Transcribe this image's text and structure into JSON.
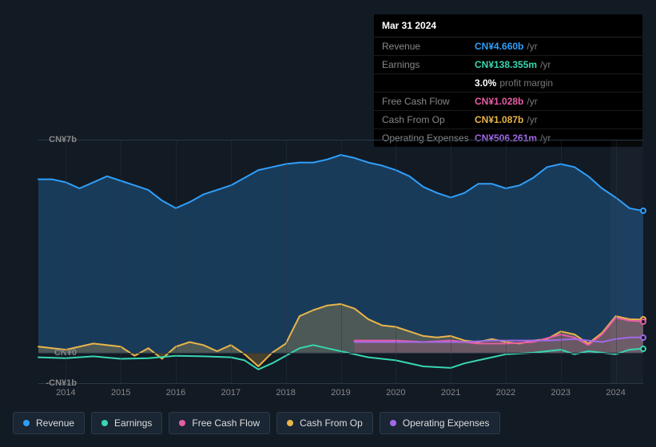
{
  "tooltip": {
    "date": "Mar 31 2024",
    "rows": [
      {
        "label": "Revenue",
        "value": "CN¥4.660b",
        "suffix": "/yr",
        "color": "#2f9ffa"
      },
      {
        "label": "Earnings",
        "value": "CN¥138.355m",
        "suffix": "/yr",
        "color": "#38d6b1"
      },
      {
        "label": "",
        "value": "3.0%",
        "suffix": "profit margin",
        "color": "#ffffff"
      },
      {
        "label": "Free Cash Flow",
        "value": "CN¥1.028b",
        "suffix": "/yr",
        "color": "#e85ca6"
      },
      {
        "label": "Cash From Op",
        "value": "CN¥1.087b",
        "suffix": "/yr",
        "color": "#e8b54a"
      },
      {
        "label": "Operating Expenses",
        "value": "CN¥506.261m",
        "suffix": "/yr",
        "color": "#a269e8"
      }
    ]
  },
  "chart": {
    "type": "line-area",
    "background_color": "#121a24",
    "grid_color": "#2a3846",
    "text_color": "#888",
    "y_axis": {
      "min": -1,
      "max": 7,
      "ticks": [
        {
          "value": 7,
          "label": "CN¥7b"
        },
        {
          "value": 0,
          "label": "CN¥0"
        },
        {
          "value": -1,
          "label": "-CN¥1b"
        }
      ]
    },
    "x_axis": {
      "min": 2013.5,
      "max": 2024.5,
      "ticks": [
        2014,
        2015,
        2016,
        2017,
        2018,
        2019,
        2020,
        2021,
        2022,
        2023,
        2024
      ]
    },
    "highlight_band": {
      "from": 2023.9,
      "to": 2024.5
    },
    "series": [
      {
        "name": "Revenue",
        "color": "#2f9ffa",
        "area": true,
        "area_opacity": 0.25,
        "line_width": 2,
        "points": [
          [
            2013.5,
            5.7
          ],
          [
            2013.75,
            5.7
          ],
          [
            2014,
            5.6
          ],
          [
            2014.25,
            5.4
          ],
          [
            2014.5,
            5.6
          ],
          [
            2014.75,
            5.8
          ],
          [
            2015,
            5.65
          ],
          [
            2015.25,
            5.5
          ],
          [
            2015.5,
            5.35
          ],
          [
            2015.75,
            5.0
          ],
          [
            2016,
            4.75
          ],
          [
            2016.25,
            4.95
          ],
          [
            2016.5,
            5.2
          ],
          [
            2016.75,
            5.35
          ],
          [
            2017,
            5.5
          ],
          [
            2017.25,
            5.75
          ],
          [
            2017.5,
            6.0
          ],
          [
            2017.75,
            6.1
          ],
          [
            2018,
            6.2
          ],
          [
            2018.25,
            6.25
          ],
          [
            2018.5,
            6.25
          ],
          [
            2018.75,
            6.35
          ],
          [
            2019,
            6.5
          ],
          [
            2019.25,
            6.4
          ],
          [
            2019.5,
            6.25
          ],
          [
            2019.75,
            6.15
          ],
          [
            2020,
            6.0
          ],
          [
            2020.25,
            5.8
          ],
          [
            2020.5,
            5.45
          ],
          [
            2020.75,
            5.25
          ],
          [
            2021,
            5.1
          ],
          [
            2021.25,
            5.25
          ],
          [
            2021.5,
            5.55
          ],
          [
            2021.75,
            5.55
          ],
          [
            2022,
            5.4
          ],
          [
            2022.25,
            5.5
          ],
          [
            2022.5,
            5.75
          ],
          [
            2022.75,
            6.1
          ],
          [
            2023,
            6.2
          ],
          [
            2023.25,
            6.1
          ],
          [
            2023.5,
            5.8
          ],
          [
            2023.75,
            5.4
          ],
          [
            2024,
            5.1
          ],
          [
            2024.25,
            4.75
          ],
          [
            2024.5,
            4.66
          ]
        ]
      },
      {
        "name": "Cash From Op",
        "color": "#e8b54a",
        "area": true,
        "area_opacity": 0.25,
        "line_width": 2,
        "points": [
          [
            2013.5,
            0.2
          ],
          [
            2014,
            0.1
          ],
          [
            2014.5,
            0.3
          ],
          [
            2015,
            0.2
          ],
          [
            2015.25,
            -0.1
          ],
          [
            2015.5,
            0.15
          ],
          [
            2015.75,
            -0.2
          ],
          [
            2016,
            0.2
          ],
          [
            2016.25,
            0.35
          ],
          [
            2016.5,
            0.25
          ],
          [
            2016.75,
            0.05
          ],
          [
            2017,
            0.25
          ],
          [
            2017.25,
            -0.05
          ],
          [
            2017.5,
            -0.45
          ],
          [
            2017.75,
            0.0
          ],
          [
            2018,
            0.3
          ],
          [
            2018.25,
            1.2
          ],
          [
            2018.5,
            1.4
          ],
          [
            2018.75,
            1.55
          ],
          [
            2019,
            1.6
          ],
          [
            2019.25,
            1.45
          ],
          [
            2019.5,
            1.1
          ],
          [
            2019.75,
            0.9
          ],
          [
            2020,
            0.85
          ],
          [
            2020.25,
            0.7
          ],
          [
            2020.5,
            0.55
          ],
          [
            2020.75,
            0.5
          ],
          [
            2021,
            0.55
          ],
          [
            2021.25,
            0.4
          ],
          [
            2021.5,
            0.35
          ],
          [
            2021.75,
            0.45
          ],
          [
            2022,
            0.35
          ],
          [
            2022.25,
            0.3
          ],
          [
            2022.5,
            0.4
          ],
          [
            2022.75,
            0.45
          ],
          [
            2023,
            0.7
          ],
          [
            2023.25,
            0.6
          ],
          [
            2023.5,
            0.3
          ],
          [
            2023.75,
            0.65
          ],
          [
            2024,
            1.2
          ],
          [
            2024.25,
            1.1
          ],
          [
            2024.5,
            1.087
          ]
        ]
      },
      {
        "name": "Free Cash Flow",
        "color": "#e85ca6",
        "area": true,
        "area_opacity": 0.2,
        "line_width": 2,
        "points": [
          [
            2019.25,
            0.4
          ],
          [
            2019.5,
            0.4
          ],
          [
            2020,
            0.4
          ],
          [
            2020.5,
            0.35
          ],
          [
            2021,
            0.4
          ],
          [
            2021.5,
            0.3
          ],
          [
            2022,
            0.3
          ],
          [
            2022.5,
            0.35
          ],
          [
            2023,
            0.6
          ],
          [
            2023.25,
            0.5
          ],
          [
            2023.5,
            0.25
          ],
          [
            2023.75,
            0.6
          ],
          [
            2024,
            1.15
          ],
          [
            2024.25,
            1.05
          ],
          [
            2024.5,
            1.028
          ]
        ]
      },
      {
        "name": "Operating Expenses",
        "color": "#a269e8",
        "area": false,
        "line_width": 2,
        "points": [
          [
            2019.25,
            0.35
          ],
          [
            2019.75,
            0.35
          ],
          [
            2020.25,
            0.35
          ],
          [
            2020.75,
            0.35
          ],
          [
            2021.25,
            0.35
          ],
          [
            2021.75,
            0.4
          ],
          [
            2022.25,
            0.4
          ],
          [
            2022.75,
            0.4
          ],
          [
            2023.25,
            0.45
          ],
          [
            2023.5,
            0.4
          ],
          [
            2023.75,
            0.35
          ],
          [
            2024,
            0.45
          ],
          [
            2024.25,
            0.5
          ],
          [
            2024.5,
            0.506
          ]
        ]
      },
      {
        "name": "Earnings",
        "color": "#38d6b1",
        "area": false,
        "line_width": 2,
        "points": [
          [
            2013.5,
            -0.15
          ],
          [
            2014,
            -0.18
          ],
          [
            2014.5,
            -0.12
          ],
          [
            2015,
            -0.2
          ],
          [
            2015.5,
            -0.18
          ],
          [
            2016,
            -0.1
          ],
          [
            2016.5,
            -0.12
          ],
          [
            2017,
            -0.15
          ],
          [
            2017.25,
            -0.25
          ],
          [
            2017.5,
            -0.55
          ],
          [
            2017.75,
            -0.35
          ],
          [
            2018,
            -0.1
          ],
          [
            2018.25,
            0.15
          ],
          [
            2018.5,
            0.25
          ],
          [
            2018.75,
            0.15
          ],
          [
            2019,
            0.05
          ],
          [
            2019.25,
            -0.05
          ],
          [
            2019.5,
            -0.15
          ],
          [
            2019.75,
            -0.2
          ],
          [
            2020,
            -0.25
          ],
          [
            2020.5,
            -0.45
          ],
          [
            2021,
            -0.5
          ],
          [
            2021.25,
            -0.35
          ],
          [
            2021.5,
            -0.25
          ],
          [
            2021.75,
            -0.15
          ],
          [
            2022,
            -0.05
          ],
          [
            2022.5,
            0.0
          ],
          [
            2023,
            0.1
          ],
          [
            2023.25,
            -0.05
          ],
          [
            2023.5,
            0.05
          ],
          [
            2023.75,
            0.0
          ],
          [
            2024,
            -0.05
          ],
          [
            2024.25,
            0.1
          ],
          [
            2024.5,
            0.138
          ]
        ]
      }
    ],
    "end_markers": [
      {
        "color": "#2f9ffa",
        "x": 2024.5,
        "y": 4.66
      },
      {
        "color": "#e8b54a",
        "x": 2024.5,
        "y": 1.087
      },
      {
        "color": "#e85ca6",
        "x": 2024.5,
        "y": 1.028
      },
      {
        "color": "#a269e8",
        "x": 2024.5,
        "y": 0.506
      },
      {
        "color": "#38d6b1",
        "x": 2024.5,
        "y": 0.138
      }
    ]
  },
  "legend": [
    {
      "label": "Revenue",
      "color": "#2f9ffa"
    },
    {
      "label": "Earnings",
      "color": "#38d6b1"
    },
    {
      "label": "Free Cash Flow",
      "color": "#e85ca6"
    },
    {
      "label": "Cash From Op",
      "color": "#e8b54a"
    },
    {
      "label": "Operating Expenses",
      "color": "#a269e8"
    }
  ]
}
